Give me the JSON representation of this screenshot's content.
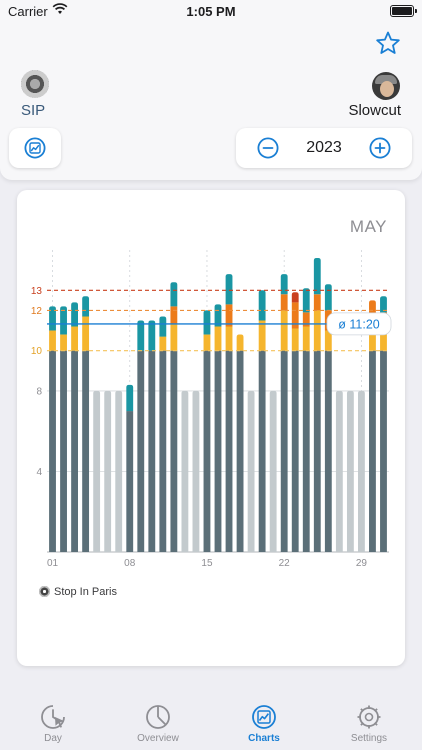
{
  "status": {
    "carrier": "Carrier",
    "time": "1:05 PM"
  },
  "header": {
    "left_label": "SIP",
    "right_label": "Slowcut",
    "year": "2023"
  },
  "icons": {
    "star": "star-icon",
    "chart_toggle": "chart-line-icon",
    "minus": "minus-circle-icon",
    "plus": "plus-circle-icon"
  },
  "colors": {
    "accent": "#1a7fd4",
    "base_day": "#5b6f78",
    "off_day": "#c3cacd",
    "overtime_yellow": "#f5b52e",
    "overtime_orange": "#ec7b1a",
    "overtime_red": "#c9401f",
    "extra_teal": "#1a96a3"
  },
  "card": {
    "month": "MAY",
    "legend": "Stop In Paris"
  },
  "chart_data": {
    "type": "bar",
    "title": "",
    "average_label": "ø 11:20",
    "average_value": 11.33,
    "ylim": [
      0,
      15
    ],
    "y_ticks": [
      4,
      8,
      10,
      12,
      13
    ],
    "x_ticks": [
      {
        "day": 1,
        "label": "01"
      },
      {
        "day": 8,
        "label": "08"
      },
      {
        "day": 15,
        "label": "15"
      },
      {
        "day": 22,
        "label": "22"
      },
      {
        "day": 29,
        "label": "29"
      }
    ],
    "days": [
      {
        "day": 1,
        "segments": [
          [
            "base",
            10
          ],
          [
            "yellow",
            1
          ],
          [
            "teal",
            1.2
          ]
        ]
      },
      {
        "day": 2,
        "segments": [
          [
            "base",
            10
          ],
          [
            "yellow",
            0.8
          ],
          [
            "teal",
            1.4
          ]
        ]
      },
      {
        "day": 3,
        "segments": [
          [
            "base",
            10
          ],
          [
            "yellow",
            1.2
          ],
          [
            "teal",
            1.2
          ]
        ]
      },
      {
        "day": 4,
        "segments": [
          [
            "base",
            10
          ],
          [
            "yellow",
            1.7
          ],
          [
            "teal",
            1
          ]
        ]
      },
      {
        "day": 5,
        "segments": [
          [
            "off",
            8
          ]
        ]
      },
      {
        "day": 6,
        "segments": [
          [
            "off",
            8
          ]
        ]
      },
      {
        "day": 7,
        "segments": [
          [
            "off",
            8
          ]
        ]
      },
      {
        "day": 8,
        "segments": [
          [
            "base",
            7
          ],
          [
            "teal",
            1.3
          ]
        ]
      },
      {
        "day": 9,
        "segments": [
          [
            "base",
            10
          ],
          [
            "teal",
            1.5
          ]
        ]
      },
      {
        "day": 10,
        "segments": [
          [
            "base",
            10
          ],
          [
            "teal",
            1.5
          ]
        ]
      },
      {
        "day": 11,
        "segments": [
          [
            "base",
            10
          ],
          [
            "yellow",
            0.7
          ],
          [
            "teal",
            1
          ]
        ]
      },
      {
        "day": 12,
        "segments": [
          [
            "base",
            10
          ],
          [
            "yellow",
            1.3
          ],
          [
            "orange",
            0.9
          ],
          [
            "teal",
            1.2
          ]
        ]
      },
      {
        "day": 13,
        "segments": [
          [
            "off",
            8
          ]
        ]
      },
      {
        "day": 14,
        "segments": [
          [
            "off",
            8
          ]
        ]
      },
      {
        "day": 15,
        "segments": [
          [
            "base",
            10
          ],
          [
            "yellow",
            0.8
          ],
          [
            "teal",
            1.2
          ]
        ]
      },
      {
        "day": 16,
        "segments": [
          [
            "base",
            10
          ],
          [
            "yellow",
            1.2
          ],
          [
            "teal",
            1.1
          ]
        ]
      },
      {
        "day": 17,
        "segments": [
          [
            "base",
            10
          ],
          [
            "yellow",
            1.2
          ],
          [
            "orange",
            1.1
          ],
          [
            "teal",
            1.5
          ]
        ]
      },
      {
        "day": 18,
        "segments": [
          [
            "base",
            10
          ],
          [
            "yellow",
            0.8
          ]
        ]
      },
      {
        "day": 19,
        "segments": [
          [
            "off",
            8
          ]
        ]
      },
      {
        "day": 20,
        "segments": [
          [
            "base",
            10
          ],
          [
            "yellow",
            1.5
          ],
          [
            "teal",
            1.5
          ]
        ]
      },
      {
        "day": 21,
        "segments": [
          [
            "off",
            8
          ]
        ]
      },
      {
        "day": 22,
        "segments": [
          [
            "base",
            10
          ],
          [
            "yellow",
            2
          ],
          [
            "orange",
            0.8
          ],
          [
            "teal",
            1
          ]
        ]
      },
      {
        "day": 23,
        "segments": [
          [
            "base",
            10
          ],
          [
            "yellow",
            1.1
          ],
          [
            "orange",
            1.3
          ],
          [
            "red",
            0.5
          ]
        ]
      },
      {
        "day": 24,
        "segments": [
          [
            "base",
            10
          ],
          [
            "yellow",
            1.2
          ],
          [
            "orange",
            0.7
          ],
          [
            "teal",
            1.2
          ]
        ]
      },
      {
        "day": 25,
        "segments": [
          [
            "base",
            10
          ],
          [
            "yellow",
            2
          ],
          [
            "orange",
            0.8
          ],
          [
            "teal",
            1.8
          ]
        ]
      },
      {
        "day": 26,
        "segments": [
          [
            "base",
            10
          ],
          [
            "yellow",
            1
          ],
          [
            "orange",
            1
          ],
          [
            "teal",
            1.3
          ]
        ]
      },
      {
        "day": 27,
        "segments": [
          [
            "off",
            8
          ]
        ]
      },
      {
        "day": 28,
        "segments": [
          [
            "off",
            8
          ]
        ]
      },
      {
        "day": 29,
        "segments": [
          [
            "off",
            8
          ]
        ]
      },
      {
        "day": 30,
        "segments": [
          [
            "base",
            10
          ],
          [
            "yellow",
            1.5
          ],
          [
            "orange",
            1
          ]
        ]
      },
      {
        "day": 31,
        "segments": [
          [
            "base",
            10
          ],
          [
            "yellow",
            1.1
          ],
          [
            "orange",
            0.8
          ],
          [
            "teal",
            0.8
          ]
        ]
      }
    ]
  },
  "tabs": [
    {
      "label": "Day",
      "icon": "clock-cursor-icon",
      "active": false
    },
    {
      "label": "Overview",
      "icon": "pie-chart-icon",
      "active": false
    },
    {
      "label": "Charts",
      "icon": "chart-line-icon",
      "active": true
    },
    {
      "label": "Settings",
      "icon": "gear-icon",
      "active": false
    }
  ]
}
